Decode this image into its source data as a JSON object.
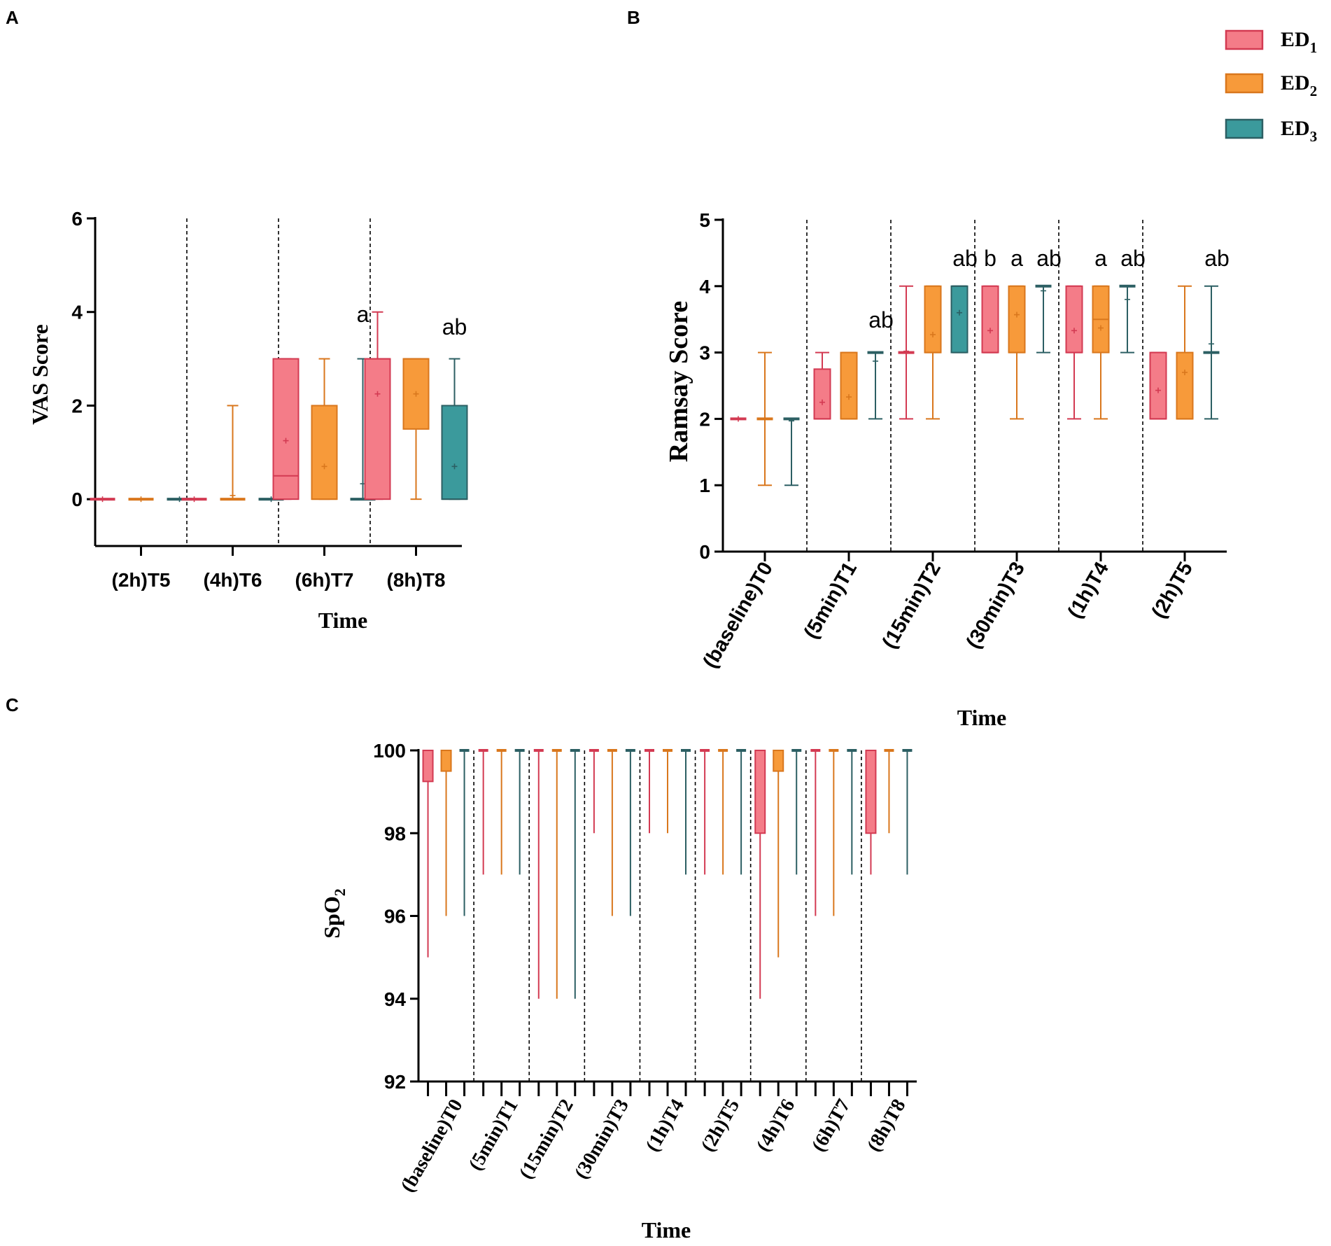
{
  "legend": {
    "items": [
      {
        "name": "ED",
        "sub": "1",
        "color": "#f47c88",
        "stroke": "#d33a52"
      },
      {
        "name": "ED",
        "sub": "2",
        "color": "#f79a3a",
        "stroke": "#d9771d"
      },
      {
        "name": "ED",
        "sub": "3",
        "color": "#3b9a9c",
        "stroke": "#2c5f63"
      }
    ]
  },
  "whisker_colors": [
    "#d33a52",
    "#d9771d",
    "#2c5f63"
  ],
  "chart_data": [
    {
      "panel": "A",
      "type": "box",
      "xlabel": "Time",
      "ylabel": "VAS Score",
      "ylim": [
        -1,
        6
      ],
      "yticks": [
        "0",
        "2",
        "4",
        "6"
      ],
      "categories": [
        "(2h)T5",
        "(4h)T6",
        "(6h)T7",
        "(8h)T8"
      ],
      "annotations": [
        "",
        "",
        "a",
        "ab"
      ],
      "series": [
        {
          "name": "ED1",
          "boxes": [
            {
              "min": 0,
              "q1": 0,
              "median": 0,
              "q3": 0,
              "max": 0,
              "mean": 0
            },
            {
              "min": 0,
              "q1": 0,
              "median": 0,
              "q3": 0,
              "max": 0,
              "mean": 0
            },
            {
              "min": 0,
              "q1": 0,
              "median": 0.5,
              "q3": 3,
              "max": 3,
              "mean": 1.25
            },
            {
              "min": 0,
              "q1": 0,
              "median": 3,
              "q3": 3,
              "max": 4,
              "mean": 2.25
            }
          ]
        },
        {
          "name": "ED2",
          "boxes": [
            {
              "min": 0,
              "q1": 0,
              "median": 0,
              "q3": 0,
              "max": 0,
              "mean": 0
            },
            {
              "min": 0,
              "q1": 0,
              "median": 0,
              "q3": 0,
              "max": 2,
              "mean": 0.08
            },
            {
              "min": 0,
              "q1": 0,
              "median": 0,
              "q3": 2,
              "max": 3,
              "mean": 0.7
            },
            {
              "min": 0,
              "q1": 1.5,
              "median": 3,
              "q3": 3,
              "max": 3,
              "mean": 2.25
            }
          ]
        },
        {
          "name": "ED3",
          "boxes": [
            {
              "min": 0,
              "q1": 0,
              "median": 0,
              "q3": 0,
              "max": 0,
              "mean": 0
            },
            {
              "min": 0,
              "q1": 0,
              "median": 0,
              "q3": 0,
              "max": 0,
              "mean": 0
            },
            {
              "min": 0,
              "q1": 0,
              "median": 0,
              "q3": 0,
              "max": 3,
              "mean": 0.33
            },
            {
              "min": 0,
              "q1": 0,
              "median": 0,
              "q3": 2,
              "max": 3,
              "mean": 0.7
            }
          ]
        }
      ]
    },
    {
      "panel": "B",
      "type": "box",
      "xlabel": "Time",
      "ylabel": "Ramsay Score",
      "ylim": [
        0,
        5
      ],
      "yticks": [
        "0",
        "1",
        "2",
        "3",
        "4",
        "5"
      ],
      "categories": [
        "(baseline)T0",
        "(5min)T1",
        "(15min)T2",
        "(30min)T3",
        "(1h)T4",
        "(2h)T5"
      ],
      "annotation_groups": [
        [],
        [
          {
            "series": 2,
            "text": "ab"
          }
        ],
        [
          {
            "series": 2,
            "text": "ab"
          }
        ],
        [
          {
            "series": 0,
            "text": "b"
          },
          {
            "series": 1,
            "text": "a"
          },
          {
            "series": 2,
            "text": "ab"
          }
        ],
        [
          {
            "series": 1,
            "text": "a"
          },
          {
            "series": 2,
            "text": "ab"
          }
        ],
        [
          {
            "series": 2,
            "text": "ab"
          }
        ]
      ],
      "series": [
        {
          "name": "ED1",
          "boxes": [
            {
              "min": 2,
              "q1": 2,
              "median": 2,
              "q3": 2,
              "max": 2,
              "mean": 2
            },
            {
              "min": 2,
              "q1": 2,
              "median": 2,
              "q3": 2.75,
              "max": 3,
              "mean": 2.25
            },
            {
              "min": 2,
              "q1": 3,
              "median": 3,
              "q3": 3,
              "max": 4,
              "mean": 3.02
            },
            {
              "min": 3,
              "q1": 3,
              "median": 3,
              "q3": 4,
              "max": 4,
              "mean": 3.33
            },
            {
              "min": 2,
              "q1": 3,
              "median": 3,
              "q3": 4,
              "max": 4,
              "mean": 3.33
            },
            {
              "min": 2,
              "q1": 2,
              "median": 2,
              "q3": 3,
              "max": 3,
              "mean": 2.43
            }
          ]
        },
        {
          "name": "ED2",
          "boxes": [
            {
              "min": 1,
              "q1": 2,
              "median": 2,
              "q3": 2,
              "max": 3,
              "mean": 2
            },
            {
              "min": 2,
              "q1": 2,
              "median": 2,
              "q3": 3,
              "max": 3,
              "mean": 2.33
            },
            {
              "min": 2,
              "q1": 3,
              "median": 3,
              "q3": 4,
              "max": 4,
              "mean": 3.27
            },
            {
              "min": 2,
              "q1": 3,
              "median": 3,
              "q3": 4,
              "max": 4,
              "mean": 3.57
            },
            {
              "min": 2,
              "q1": 3,
              "median": 3.5,
              "q3": 4,
              "max": 4,
              "mean": 3.37
            },
            {
              "min": 2,
              "q1": 2,
              "median": 2,
              "q3": 3,
              "max": 4,
              "mean": 2.7
            }
          ]
        },
        {
          "name": "ED3",
          "boxes": [
            {
              "min": 1,
              "q1": 2,
              "median": 2,
              "q3": 2,
              "max": 2,
              "mean": 1.97
            },
            {
              "min": 2,
              "q1": 3,
              "median": 3,
              "q3": 3,
              "max": 3,
              "mean": 2.87
            },
            {
              "min": 3,
              "q1": 3,
              "median": 4,
              "q3": 4,
              "max": 4,
              "mean": 3.6
            },
            {
              "min": 3,
              "q1": 4,
              "median": 4,
              "q3": 4,
              "max": 4,
              "mean": 3.93
            },
            {
              "min": 3,
              "q1": 4,
              "median": 4,
              "q3": 4,
              "max": 4,
              "mean": 3.8
            },
            {
              "min": 2,
              "q1": 3,
              "median": 3,
              "q3": 3,
              "max": 4,
              "mean": 3.13
            }
          ]
        }
      ]
    },
    {
      "panel": "C",
      "type": "box",
      "xlabel": "Time",
      "ylabel": "SpO",
      "ylabel_sub": "2",
      "ylim": [
        92,
        100
      ],
      "yticks": [
        "92",
        "94",
        "96",
        "98",
        "100"
      ],
      "categories": [
        "(baseline)T0",
        "(5min)T1",
        "(15min)T2",
        "(30min)T3",
        "(1h)T4",
        "(2h)T5",
        "(4h)T6",
        "(6h)T7",
        "(8h)T8"
      ],
      "series": [
        {
          "name": "ED1",
          "boxes": [
            {
              "min": 95,
              "q1": 99.25,
              "median": 100,
              "q3": 100,
              "max": 100
            },
            {
              "min": 97,
              "q1": 100,
              "median": 100,
              "q3": 100,
              "max": 100
            },
            {
              "min": 94,
              "q1": 100,
              "median": 100,
              "q3": 100,
              "max": 100
            },
            {
              "min": 98,
              "q1": 100,
              "median": 100,
              "q3": 100,
              "max": 100
            },
            {
              "min": 98,
              "q1": 100,
              "median": 100,
              "q3": 100,
              "max": 100
            },
            {
              "min": 97,
              "q1": 100,
              "median": 100,
              "q3": 100,
              "max": 100
            },
            {
              "min": 94,
              "q1": 98,
              "median": 100,
              "q3": 100,
              "max": 100
            },
            {
              "min": 96,
              "q1": 100,
              "median": 100,
              "q3": 100,
              "max": 100
            },
            {
              "min": 97,
              "q1": 98,
              "median": 100,
              "q3": 100,
              "max": 100
            }
          ]
        },
        {
          "name": "ED2",
          "boxes": [
            {
              "min": 96,
              "q1": 99.5,
              "median": 100,
              "q3": 100,
              "max": 100
            },
            {
              "min": 97,
              "q1": 100,
              "median": 100,
              "q3": 100,
              "max": 100
            },
            {
              "min": 94,
              "q1": 100,
              "median": 100,
              "q3": 100,
              "max": 100
            },
            {
              "min": 96,
              "q1": 100,
              "median": 100,
              "q3": 100,
              "max": 100
            },
            {
              "min": 98,
              "q1": 100,
              "median": 100,
              "q3": 100,
              "max": 100
            },
            {
              "min": 97,
              "q1": 100,
              "median": 100,
              "q3": 100,
              "max": 100
            },
            {
              "min": 95,
              "q1": 99.5,
              "median": 100,
              "q3": 100,
              "max": 100
            },
            {
              "min": 96,
              "q1": 100,
              "median": 100,
              "q3": 100,
              "max": 100
            },
            {
              "min": 98,
              "q1": 100,
              "median": 100,
              "q3": 100,
              "max": 100
            }
          ]
        },
        {
          "name": "ED3",
          "boxes": [
            {
              "min": 96,
              "q1": 100,
              "median": 100,
              "q3": 100,
              "max": 100
            },
            {
              "min": 97,
              "q1": 100,
              "median": 100,
              "q3": 100,
              "max": 100
            },
            {
              "min": 94,
              "q1": 100,
              "median": 100,
              "q3": 100,
              "max": 100
            },
            {
              "min": 96,
              "q1": 100,
              "median": 100,
              "q3": 100,
              "max": 100
            },
            {
              "min": 97,
              "q1": 100,
              "median": 100,
              "q3": 100,
              "max": 100
            },
            {
              "min": 97,
              "q1": 100,
              "median": 100,
              "q3": 100,
              "max": 100
            },
            {
              "min": 97,
              "q1": 100,
              "median": 100,
              "q3": 100,
              "max": 100
            },
            {
              "min": 97,
              "q1": 100,
              "median": 100,
              "q3": 100,
              "max": 100
            },
            {
              "min": 97,
              "q1": 100,
              "median": 100,
              "q3": 100,
              "max": 100
            }
          ]
        }
      ]
    }
  ]
}
